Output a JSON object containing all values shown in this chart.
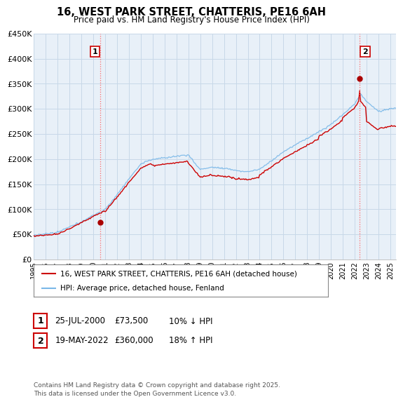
{
  "title": "16, WEST PARK STREET, CHATTERIS, PE16 6AH",
  "subtitle": "Price paid vs. HM Land Registry's House Price Index (HPI)",
  "ylim": [
    0,
    450000
  ],
  "yticks": [
    0,
    50000,
    100000,
    150000,
    200000,
    250000,
    300000,
    350000,
    400000,
    450000
  ],
  "ytick_labels": [
    "£0",
    "£50K",
    "£100K",
    "£150K",
    "£200K",
    "£250K",
    "£300K",
    "£350K",
    "£400K",
    "£450K"
  ],
  "sale1_date": 2000.56,
  "sale1_price": 73500,
  "sale1_label": "1",
  "sale2_date": 2022.38,
  "sale2_price": 360000,
  "sale2_label": "2",
  "hpi_color": "#7ab8e8",
  "price_color": "#cc0000",
  "vline_color": "#ff6666",
  "marker_color": "#aa0000",
  "grid_color": "#c8d8e8",
  "plot_bg_color": "#e8f0f8",
  "background_color": "#ffffff",
  "legend_label_red": "16, WEST PARK STREET, CHATTERIS, PE16 6AH (detached house)",
  "legend_label_blue": "HPI: Average price, detached house, Fenland",
  "annotation1_date": "25-JUL-2000",
  "annotation1_price": "£73,500",
  "annotation1_hpi": "10% ↓ HPI",
  "annotation2_date": "19-MAY-2022",
  "annotation2_price": "£360,000",
  "annotation2_hpi": "18% ↑ HPI",
  "footer": "Contains HM Land Registry data © Crown copyright and database right 2025.\nThis data is licensed under the Open Government Licence v3.0.",
  "xmin": 1995.0,
  "xmax": 2025.5
}
